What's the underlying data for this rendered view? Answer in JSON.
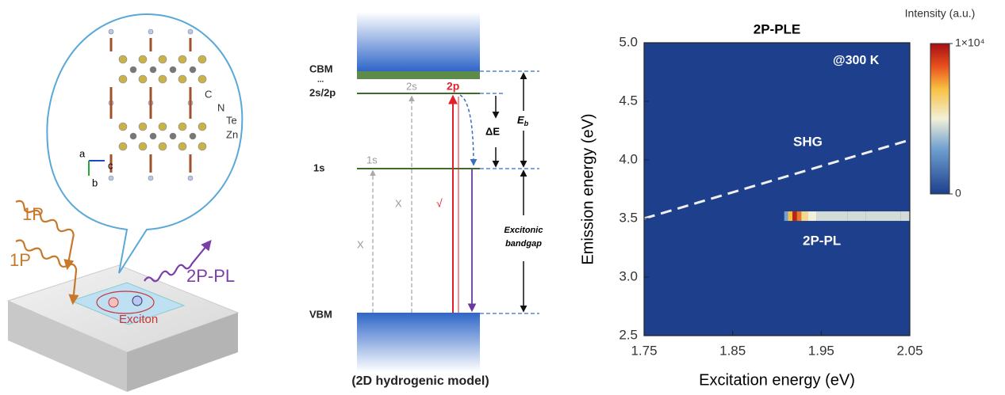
{
  "panel_a": {
    "atoms": [
      "C",
      "N",
      "Te",
      "Zn"
    ],
    "axes": [
      "a",
      "c",
      "b"
    ],
    "beam_1": "1P",
    "beam_2": "1P",
    "emission": "2P-PL",
    "exciton": "Exciton"
  },
  "panel_b": {
    "cbm": "CBM",
    "dots": "...",
    "level_2s2p": "2s/2p",
    "level_1s": "1s",
    "vbm": "VBM",
    "tag_2s": "2s",
    "tag_2p": "2p",
    "tag_1s": "1s",
    "cross_1": "X",
    "cross_2": "X",
    "check": "√",
    "delta_e": "ΔE",
    "eb": "E",
    "eb_sub": "b",
    "gap_1": "Excitonic",
    "gap_2": "bandgap",
    "caption": "(2D hydrogenic model)"
  },
  "chart_data": {
    "type": "heatmap",
    "title": "2P-PLE",
    "x_label": "Excitation energy (eV)",
    "y_label": "Emission energy (eV)",
    "xlim": [
      1.75,
      2.05
    ],
    "ylim": [
      2.5,
      5.0
    ],
    "xticks": [
      1.75,
      1.85,
      1.95,
      2.05
    ],
    "yticks": [
      2.5,
      {
        "value": 3.0,
        "label": "3.0"
      },
      3.5,
      {
        "value": 4.0,
        "label": "4.0"
      },
      4.5,
      {
        "value": 5.0,
        "label": "5.0"
      }
    ],
    "annotation_temp": "@300 K",
    "shg": {
      "name": "SHG",
      "x": [
        1.75,
        2.05
      ],
      "y": [
        3.5,
        4.17
      ]
    },
    "pl_band": {
      "name": "2P-PL",
      "y": 3.52,
      "x": [
        1.91,
        1.915,
        1.92,
        1.925,
        1.93,
        1.94,
        1.95,
        1.97,
        1.99,
        2.01,
        2.03,
        2.05
      ],
      "values": [
        3000,
        7000,
        9500,
        8000,
        6000,
        5000,
        4500,
        4500,
        4500,
        4500,
        4500,
        4500
      ]
    },
    "colorbar": {
      "title": "Intensity (a.u.)",
      "lim": [
        0,
        10000
      ],
      "ticks": [
        0,
        {
          "value": 10000,
          "label": "1×10⁴"
        }
      ]
    }
  }
}
